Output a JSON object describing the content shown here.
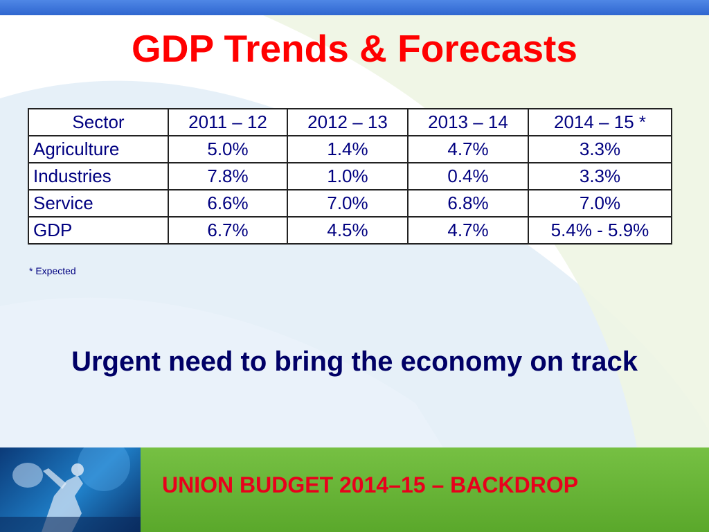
{
  "slide": {
    "title": "GDP Trends & Forecasts",
    "footnote": "* Expected",
    "tagline": "Urgent need to bring the economy on track",
    "footer": "UNION BUDGET  2014–15 – BACKDROP"
  },
  "table": {
    "headers": [
      "Sector",
      "2011 – 12",
      "2012 – 13",
      "2013 – 14",
      "2014 – 15 *"
    ],
    "rows": [
      {
        "sector": "Agriculture",
        "v1": "5.0%",
        "v2": "1.4%",
        "v3": "4.7%",
        "v4": "3.3%"
      },
      {
        "sector": "Industries",
        "v1": "7.8%",
        "v2": "1.0%",
        "v3": "0.4%",
        "v4": "3.3%"
      },
      {
        "sector": "Service",
        "v1": "6.6%",
        "v2": "7.0%",
        "v3": "6.8%",
        "v4": "7.0%"
      },
      {
        "sector": "GDP",
        "v1": "6.7%",
        "v2": "4.5%",
        "v3": "4.7%",
        "v4": "5.4% - 5.9%"
      }
    ]
  },
  "colors": {
    "title": "#ff0000",
    "table_text": "#000080",
    "tagline": "#000066",
    "footer_text": "#e8001c",
    "top_bar": "#3b73db",
    "bottom_band": "#6ab83a"
  }
}
